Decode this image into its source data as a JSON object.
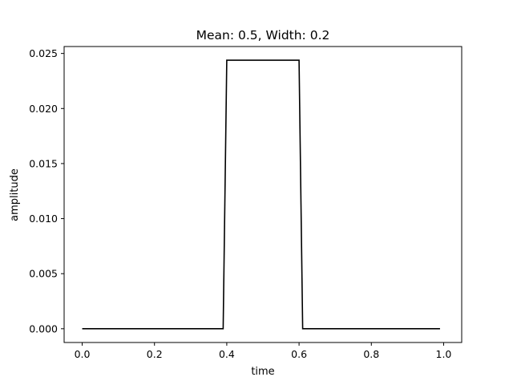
{
  "chart_data": {
    "type": "line",
    "title": "Mean: 0.5, Width: 0.2",
    "xlabel": "time",
    "ylabel": "amplitude",
    "xlim": [
      -0.05,
      1.05
    ],
    "ylim": [
      -0.00125,
      0.02563
    ],
    "grid": false,
    "x_ticks": [
      "0.0",
      "0.2",
      "0.4",
      "0.6",
      "0.8",
      "1.0"
    ],
    "y_ticks": [
      "0.000",
      "0.005",
      "0.010",
      "0.015",
      "0.020",
      "0.025"
    ],
    "series": [
      {
        "color": "#000000",
        "x": [
          0.0,
          0.39,
          0.4,
          0.6,
          0.61,
          0.99
        ],
        "y": [
          0.0,
          0.0,
          0.02439,
          0.02439,
          0.0,
          0.0
        ]
      }
    ]
  }
}
